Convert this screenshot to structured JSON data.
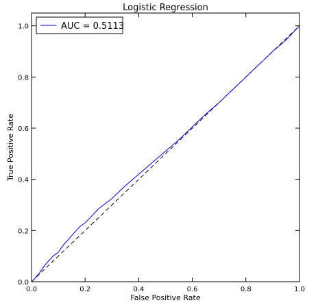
{
  "chart_data": {
    "type": "line",
    "title": "Logistic Regression",
    "xlabel": "False Positive Rate",
    "ylabel": "True Positive Rate",
    "xlim": [
      0.0,
      1.0
    ],
    "ylim": [
      0.0,
      1.05
    ],
    "xticks": [
      "0.0",
      "0.2",
      "0.4",
      "0.6",
      "0.8",
      "1.0"
    ],
    "yticks": [
      "0.0",
      "0.2",
      "0.4",
      "0.6",
      "0.8",
      "1.0"
    ],
    "grid": false,
    "legend": {
      "placement": "top-left",
      "entries": [
        "AUC = 0.5113"
      ]
    },
    "series": [
      {
        "name": "AUC = 0.5113",
        "style": "solid",
        "color": "#0000ff",
        "x": [
          0.0,
          0.01,
          0.03,
          0.05,
          0.08,
          0.1,
          0.12,
          0.15,
          0.18,
          0.2,
          0.25,
          0.3,
          0.35,
          0.4,
          0.45,
          0.5,
          0.55,
          0.6,
          0.65,
          0.7,
          0.75,
          0.8,
          0.85,
          0.9,
          0.95,
          1.0
        ],
        "y": [
          0.0,
          0.01,
          0.035,
          0.065,
          0.1,
          0.115,
          0.145,
          0.18,
          0.215,
          0.23,
          0.285,
          0.325,
          0.375,
          0.42,
          0.465,
          0.51,
          0.555,
          0.605,
          0.655,
          0.7,
          0.75,
          0.8,
          0.85,
          0.9,
          0.945,
          1.0
        ]
      },
      {
        "style": "dashed",
        "color": "#000000",
        "x": [
          0.0,
          1.0
        ],
        "y": [
          0.0,
          1.0
        ]
      }
    ]
  }
}
